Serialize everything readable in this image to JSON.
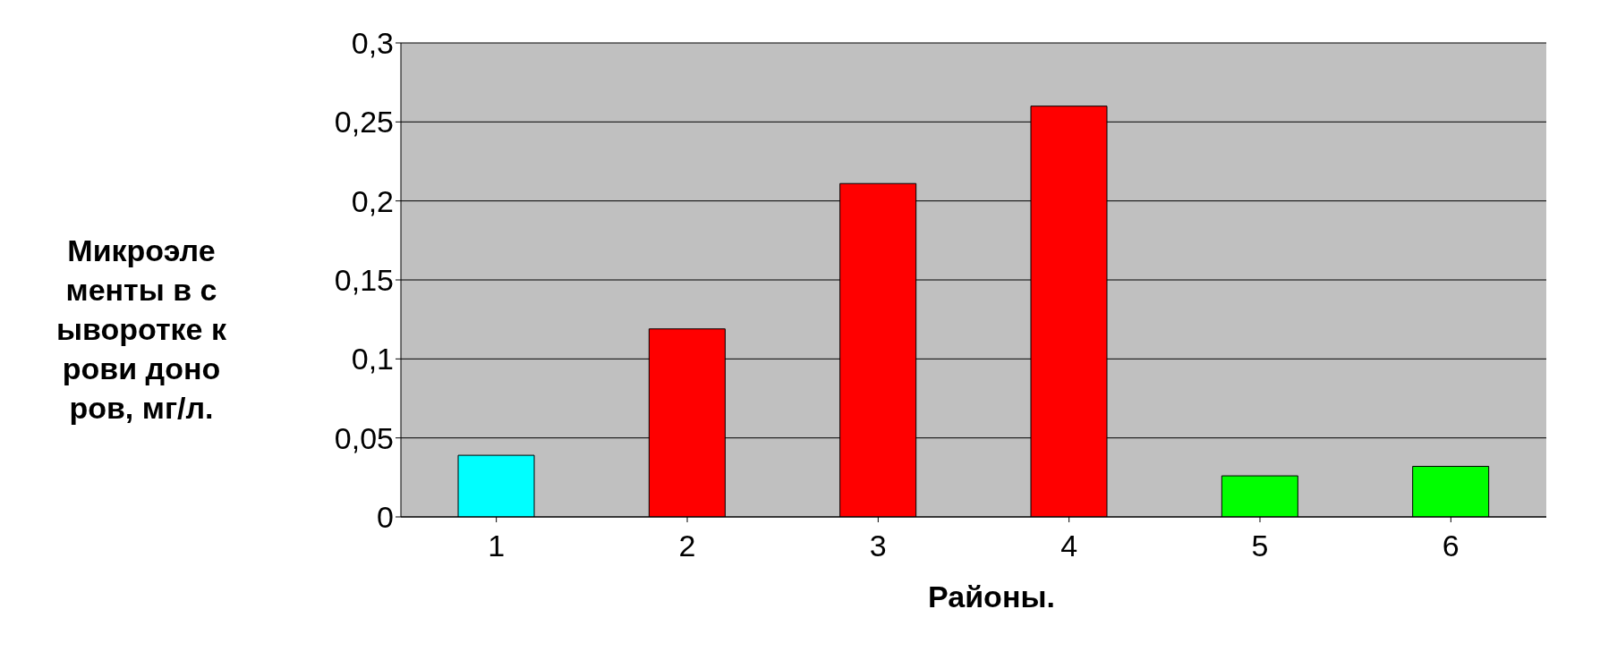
{
  "chart_data": {
    "type": "bar",
    "xlabel": "Районы.",
    "ylabel": "Микроэлементы в сыворотке крови доноров, мг/л.",
    "categories": [
      "1",
      "2",
      "3",
      "4",
      "5",
      "6"
    ],
    "values": [
      0.039,
      0.119,
      0.211,
      0.26,
      0.026,
      0.032
    ],
    "colors": [
      "#00ffff",
      "#ff0000",
      "#ff0000",
      "#ff0000",
      "#00ff00",
      "#00ff00"
    ],
    "ylim": [
      0,
      0.3
    ],
    "yticks": [
      0,
      {
        "value": 0.05,
        "label": "0,05"
      },
      {
        "value": 0.1,
        "label": "0,1"
      },
      {
        "value": 0.15,
        "label": "0,15"
      },
      {
        "value": 0.2,
        "label": "0,2"
      },
      {
        "value": 0.25,
        "label": "0,25"
      },
      {
        "value": 0.3,
        "label": "0,3"
      }
    ],
    "grid": "y",
    "legend": false
  }
}
